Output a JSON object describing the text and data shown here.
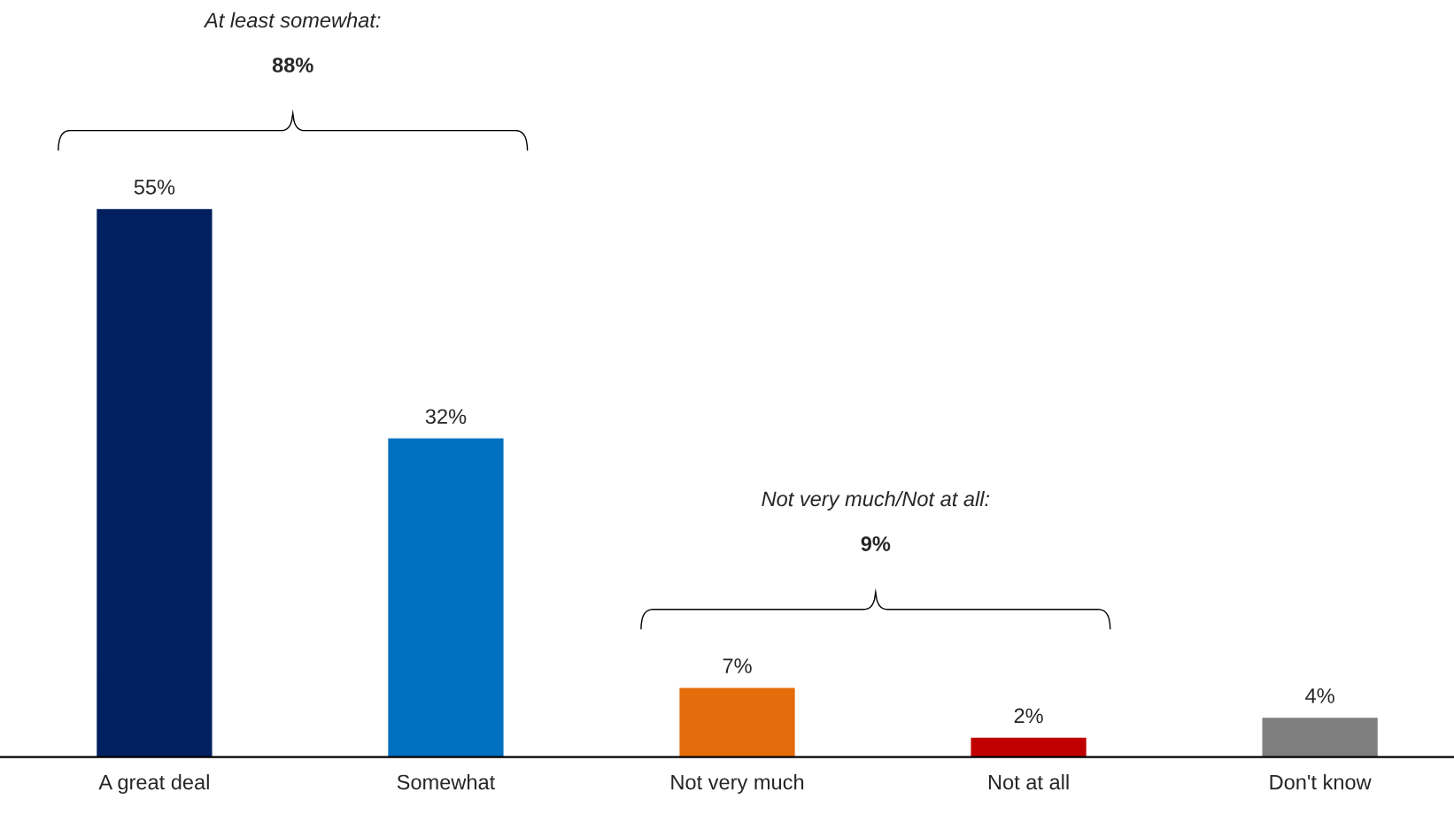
{
  "chart_data": {
    "type": "bar",
    "categories": [
      "A great deal",
      "Somewhat",
      "Not very much",
      "Not at all",
      "Don't know"
    ],
    "values": [
      55,
      32,
      7,
      2,
      4
    ],
    "colors": [
      "#002060",
      "#0070c0",
      "#e46c0a",
      "#c00000",
      "#7f7f7f"
    ],
    "value_labels": [
      "55%",
      "32%",
      "7%",
      "2%",
      "4%"
    ],
    "annotations": [
      "At least somewhat:",
      "88%",
      "Not very much/Not at all:",
      "9%"
    ],
    "grid": false,
    "legend": false
  }
}
